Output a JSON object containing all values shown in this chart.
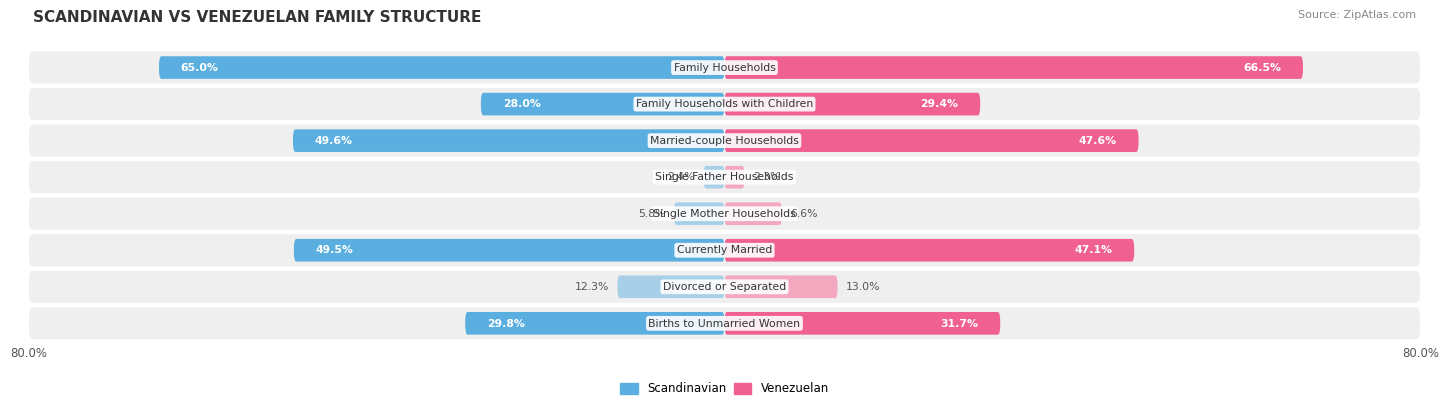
{
  "title": "SCANDINAVIAN VS VENEZUELAN FAMILY STRUCTURE",
  "source": "Source: ZipAtlas.com",
  "categories": [
    "Family Households",
    "Family Households with Children",
    "Married-couple Households",
    "Single Father Households",
    "Single Mother Households",
    "Currently Married",
    "Divorced or Separated",
    "Births to Unmarried Women"
  ],
  "scandinavian": [
    65.0,
    28.0,
    49.6,
    2.4,
    5.8,
    49.5,
    12.3,
    29.8
  ],
  "venezuelan": [
    66.5,
    29.4,
    47.6,
    2.3,
    6.6,
    47.1,
    13.0,
    31.7
  ],
  "scandinavian_color": "#5aafe0",
  "venezuelan_color": "#f06090",
  "scandinavian_color_light": "#a8cfe8",
  "venezuelan_color_light": "#f4a8c0",
  "bg_row_color": "#efefef",
  "bg_alt_color": "#e8e8e8",
  "axis_max": 80.0,
  "label_threshold": 20.0,
  "x_tick_labels": [
    "80.0%",
    "80.0%"
  ]
}
